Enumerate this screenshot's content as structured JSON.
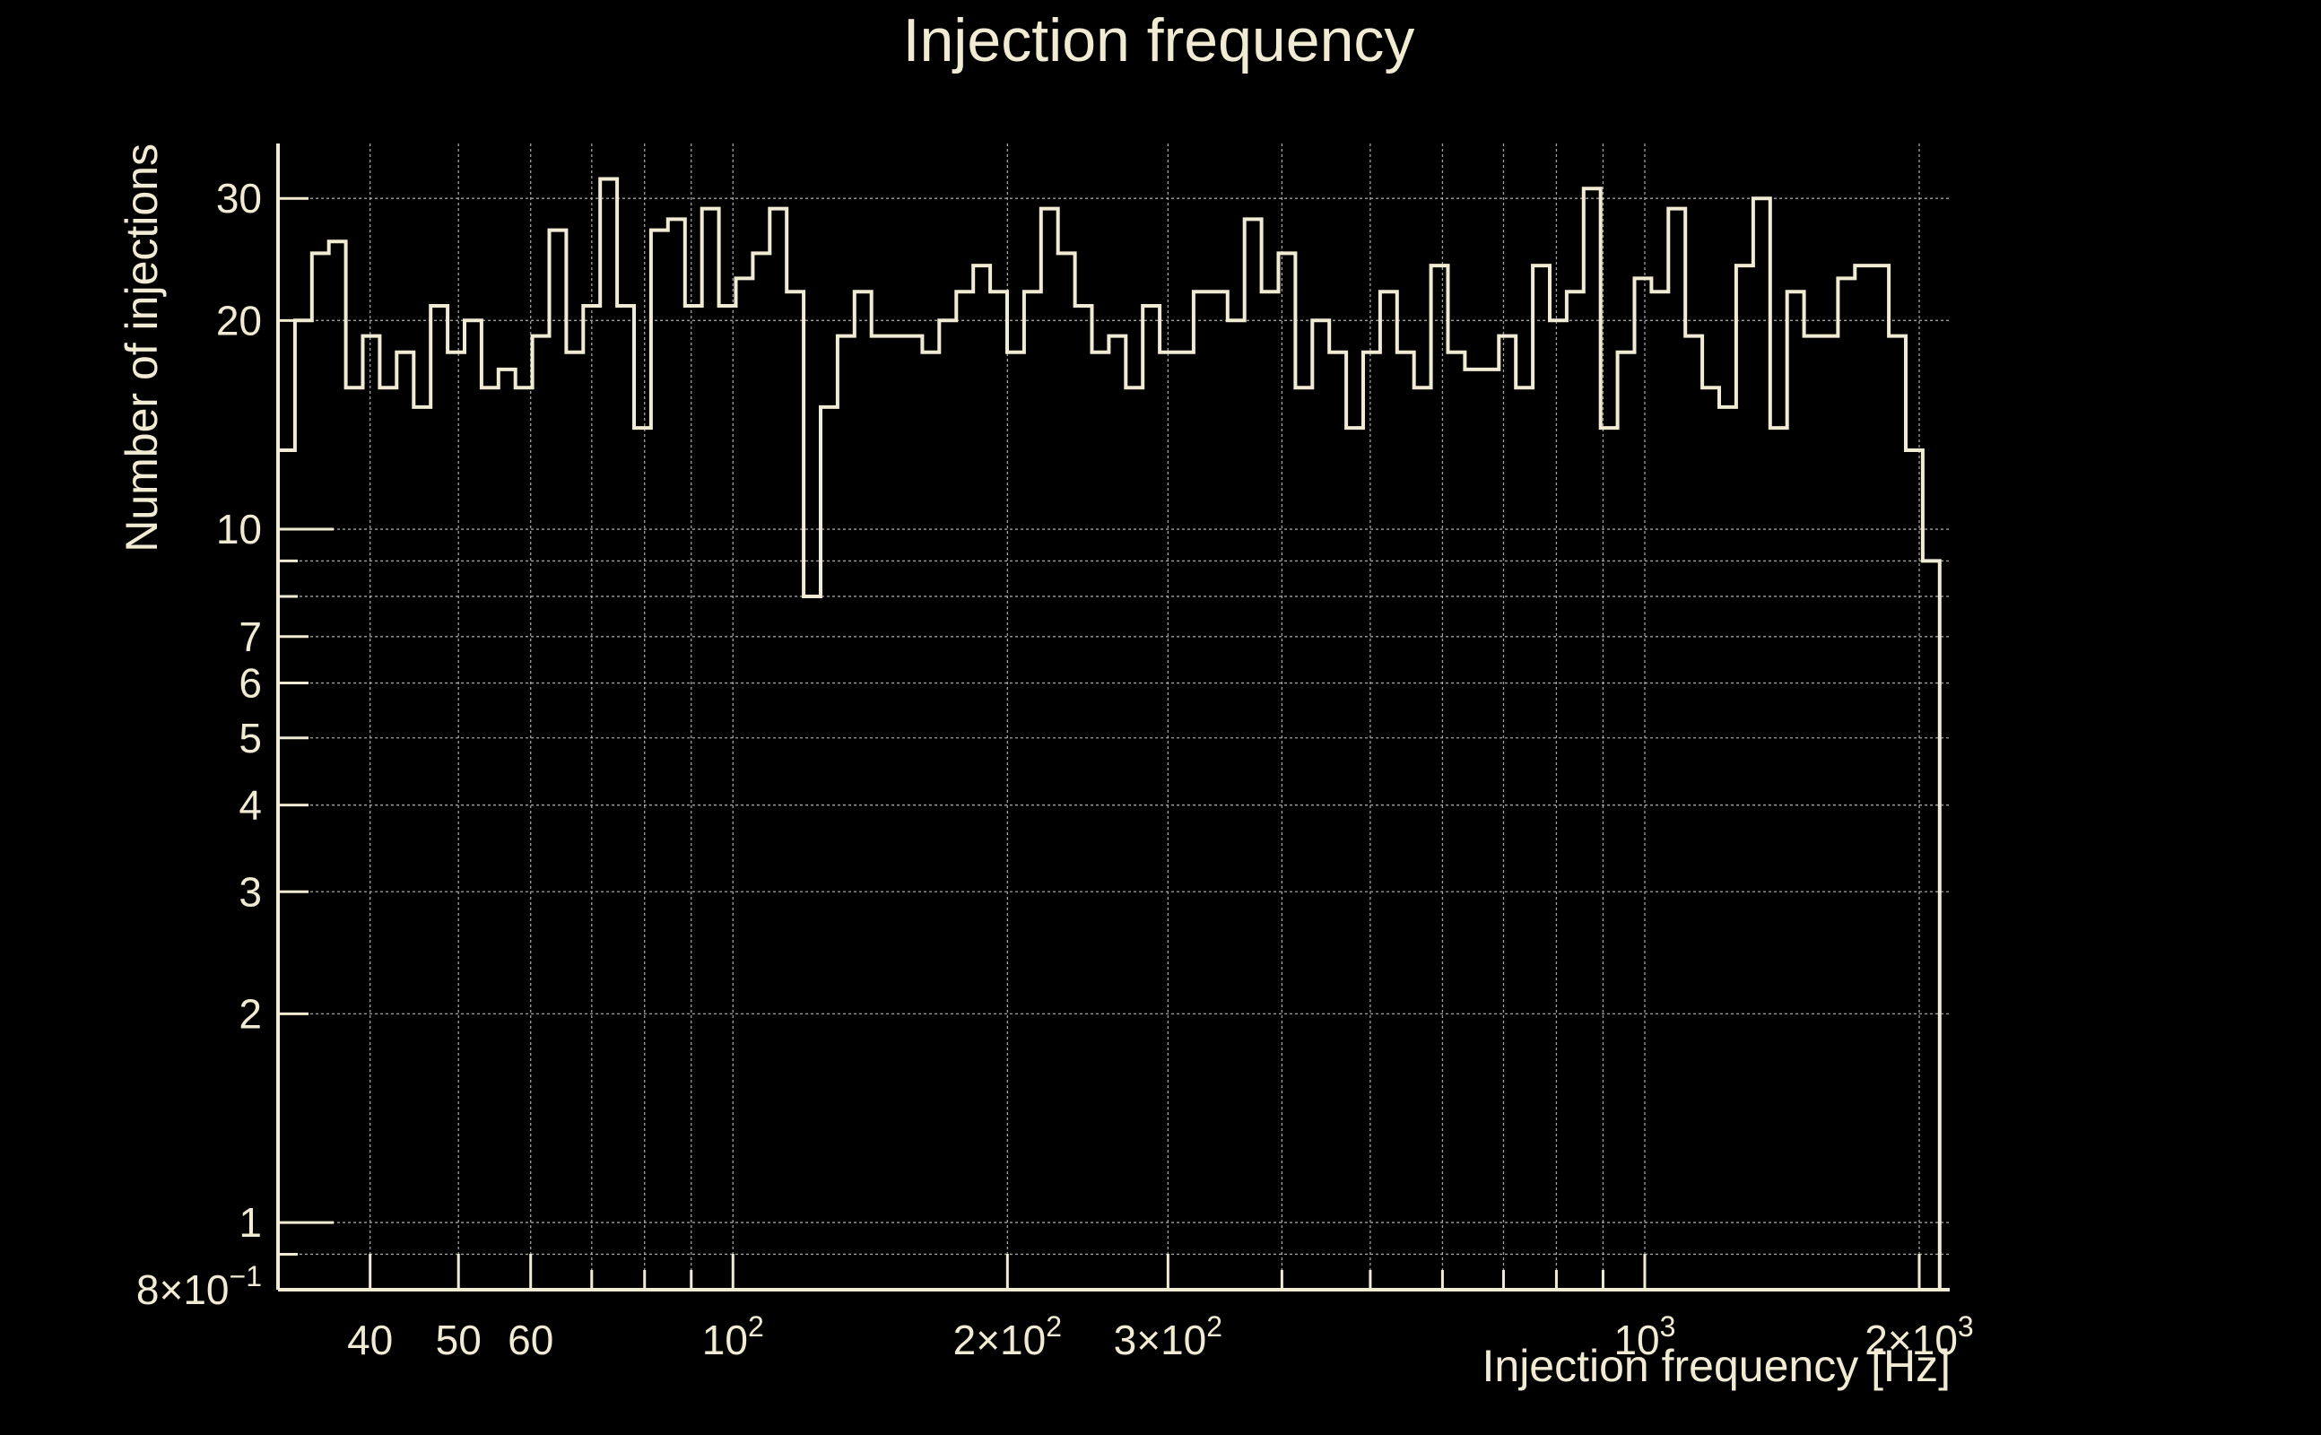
{
  "colors": {
    "background": "#000000",
    "foreground": "#f2ebd3",
    "grid": "#c8c8c8"
  },
  "chart_data": {
    "type": "histogram",
    "title": "Injection frequency",
    "xlabel": "Injection frequency [Hz]",
    "ylabel": "Number of injections",
    "x_scale": "log",
    "y_scale": "log",
    "xlim": [
      31.7,
      2160
    ],
    "ylim": [
      0.8,
      36
    ],
    "grid": true,
    "x_major_ticks": [
      {
        "value": 40,
        "label": "40"
      },
      {
        "value": 50,
        "label": "50"
      },
      {
        "value": 60,
        "label": "60"
      },
      {
        "value": 100,
        "base": "10",
        "exp": "2"
      },
      {
        "value": 200,
        "base": "2×10",
        "exp": "2"
      },
      {
        "value": 300,
        "base": "3×10",
        "exp": "2"
      },
      {
        "value": 1000,
        "base": "10",
        "exp": "3"
      },
      {
        "value": 2000,
        "base": "2×10",
        "exp": "3"
      }
    ],
    "x_minor_gridlines": [
      70,
      80,
      90,
      400,
      500,
      600,
      700,
      800,
      900
    ],
    "y_ticks": [
      {
        "value": 0.8,
        "base": "8×10",
        "exp": "−1"
      },
      {
        "value": 1,
        "label": "1"
      },
      {
        "value": 2,
        "label": "2"
      },
      {
        "value": 3,
        "label": "3"
      },
      {
        "value": 4,
        "label": "4"
      },
      {
        "value": 5,
        "label": "5"
      },
      {
        "value": 6,
        "label": "6"
      },
      {
        "value": 7,
        "label": "7"
      },
      {
        "value": 10,
        "label": "10"
      },
      {
        "value": 20,
        "label": "20"
      },
      {
        "value": 30,
        "label": "30"
      }
    ],
    "y_minor_gridlines": [
      0.9,
      8,
      9
    ],
    "bins": {
      "x_min": 31.7,
      "x_max": 2106,
      "counts": [
        13,
        20,
        25,
        26,
        16,
        19,
        16,
        18,
        15,
        21,
        18,
        20,
        16,
        17,
        16,
        19,
        27,
        18,
        21,
        32,
        21,
        14,
        27,
        28,
        21,
        29,
        21,
        23,
        25,
        29,
        22,
        8,
        15,
        19,
        22,
        19,
        19,
        19,
        18,
        20,
        22,
        24,
        22,
        18,
        22,
        29,
        25,
        21,
        18,
        19,
        16,
        21,
        18,
        18,
        22,
        22,
        20,
        28,
        22,
        25,
        16,
        20,
        18,
        14,
        18,
        22,
        18,
        16,
        24,
        18,
        17,
        17,
        19,
        16,
        24,
        20,
        22,
        31,
        14,
        18,
        23,
        22,
        29,
        19,
        16,
        15,
        24,
        30,
        14,
        22,
        19,
        19,
        23,
        24,
        24,
        19,
        13,
        9
      ]
    }
  }
}
